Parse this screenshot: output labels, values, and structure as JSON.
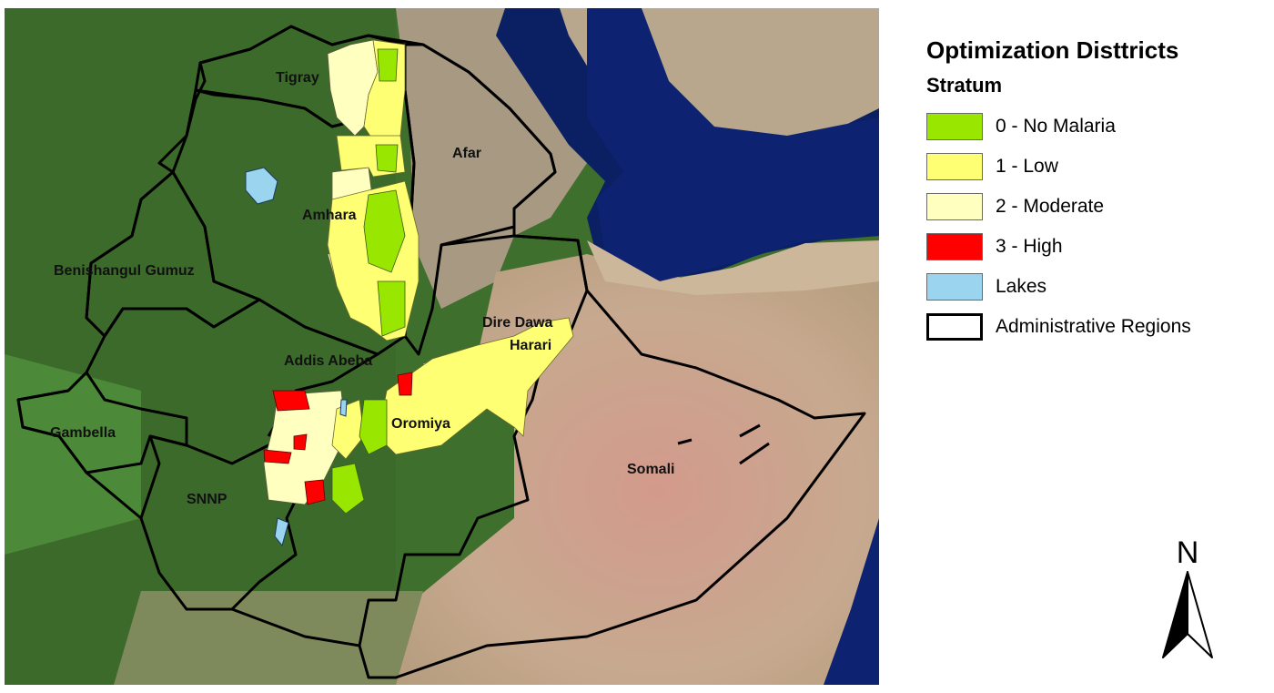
{
  "legend": {
    "title": "Optimization Disttricts",
    "subtitle": "Stratum",
    "items": [
      {
        "label": "0 - No Malaria",
        "color": "#99e600",
        "kind": "fill"
      },
      {
        "label": "1 - Low",
        "color": "#ffff73",
        "kind": "fill"
      },
      {
        "label": "2 - Moderate",
        "color": "#ffffc0",
        "kind": "fill"
      },
      {
        "label": "3 - High",
        "color": "#ff0000",
        "kind": "fill"
      },
      {
        "label": "Lakes",
        "color": "#9ad4ef",
        "kind": "fill"
      },
      {
        "label": "Administrative Regions",
        "color": "#000000",
        "kind": "outline"
      }
    ]
  },
  "regions": {
    "tigray": "Tigray",
    "afar": "Afar",
    "amhara": "Amhara",
    "benishangul": "Benishangul Gumuz",
    "addis": "Addis Abeba",
    "dire_dawa": "Dire Dawa",
    "harari": "Harari",
    "oromiya": "Oromiya",
    "gambella": "Gambella",
    "snnp": "SNNP",
    "somali": "Somali"
  },
  "north_arrow": {
    "label": "N"
  },
  "colors": {
    "sea": "#0b1f63",
    "vegetation": "#3f7a2f",
    "desert": "#c9a48a"
  }
}
